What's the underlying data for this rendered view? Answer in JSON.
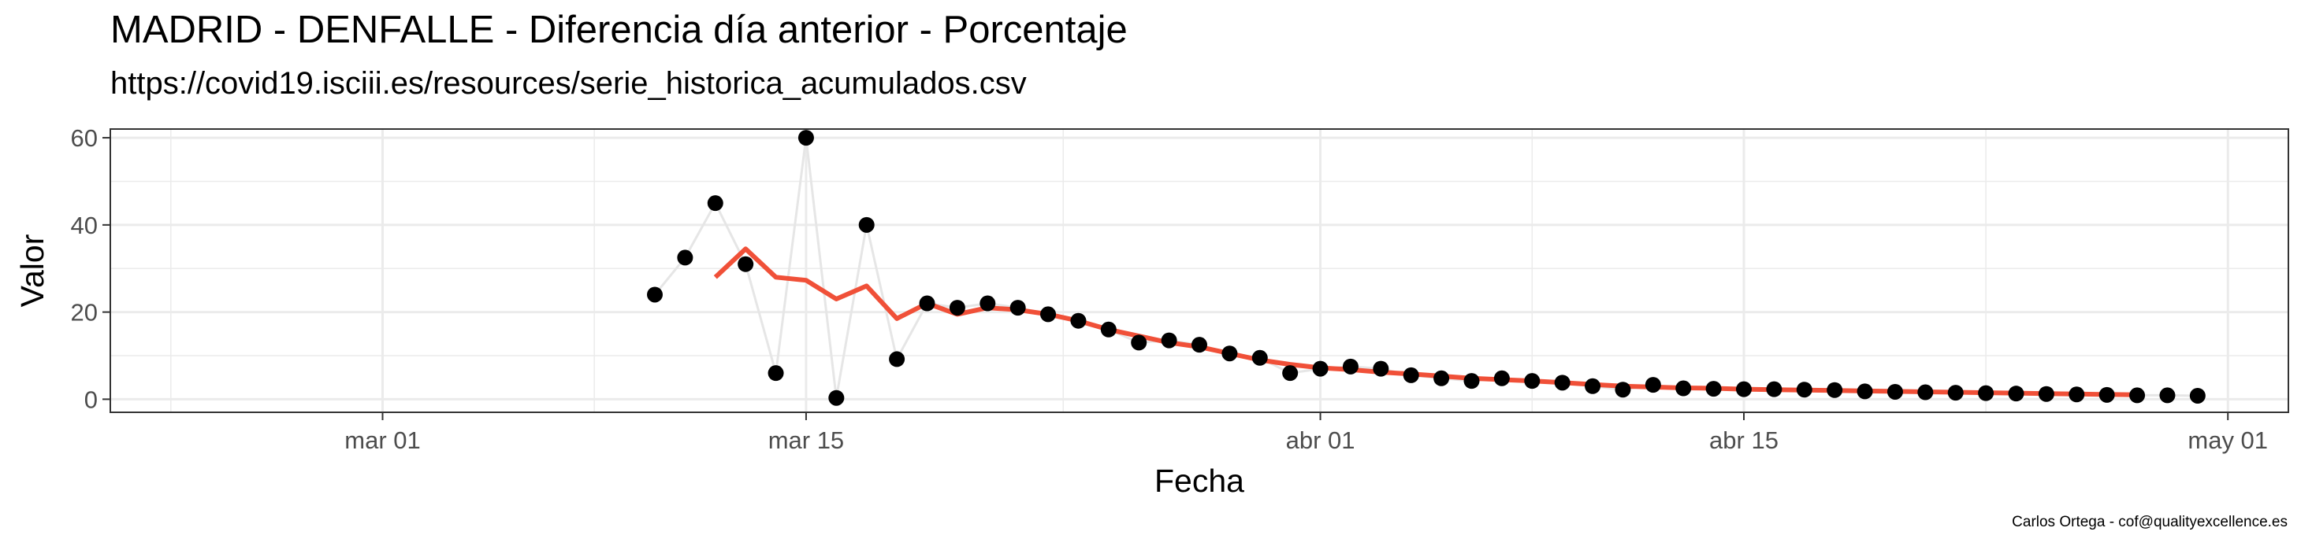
{
  "chart_data": {
    "type": "line",
    "title": "MADRID - DENFALLE - Diferencia día anterior - Porcentaje",
    "subtitle": "https://covid19.isciii.es/resources/serie_historica_acumulados.csv",
    "caption": "Carlos Ortega - cof@qualityexcellence.es",
    "xlabel": "Fecha",
    "ylabel": "Valor",
    "xlim": [
      "2020-02-21",
      "2020-05-03"
    ],
    "ylim": [
      -3,
      62
    ],
    "x_ticks": [
      {
        "date": "2020-03-01",
        "label": "mar 01"
      },
      {
        "date": "2020-03-15",
        "label": "mar 15"
      },
      {
        "date": "2020-04-01",
        "label": "abr 01"
      },
      {
        "date": "2020-04-15",
        "label": "abr 15"
      },
      {
        "date": "2020-05-01",
        "label": "may 01"
      }
    ],
    "y_ticks": [
      0,
      20,
      40,
      60
    ],
    "grid": true,
    "colors": {
      "points": "#000000",
      "raw_line": "#e6e6e6",
      "smooth_line": "#f05038",
      "grid": "#ebebeb",
      "panel_border": "#333333"
    },
    "series": [
      {
        "kind": "points-with-thin-line",
        "x": [
          "2020-03-10",
          "2020-03-11",
          "2020-03-12",
          "2020-03-13",
          "2020-03-14",
          "2020-03-15",
          "2020-03-16",
          "2020-03-17",
          "2020-03-18",
          "2020-03-19",
          "2020-03-20",
          "2020-03-21",
          "2020-03-22",
          "2020-03-23",
          "2020-03-24",
          "2020-03-25",
          "2020-03-26",
          "2020-03-27",
          "2020-03-28",
          "2020-03-29",
          "2020-03-30",
          "2020-03-31",
          "2020-04-01",
          "2020-04-02",
          "2020-04-03",
          "2020-04-04",
          "2020-04-05",
          "2020-04-06",
          "2020-04-07",
          "2020-04-08",
          "2020-04-09",
          "2020-04-10",
          "2020-04-11",
          "2020-04-12",
          "2020-04-13",
          "2020-04-14",
          "2020-04-15",
          "2020-04-16",
          "2020-04-17",
          "2020-04-18",
          "2020-04-19",
          "2020-04-20",
          "2020-04-21",
          "2020-04-22",
          "2020-04-23",
          "2020-04-24",
          "2020-04-25",
          "2020-04-26",
          "2020-04-27",
          "2020-04-28",
          "2020-04-29",
          "2020-04-30"
        ],
        "y": [
          24,
          32.5,
          45,
          31,
          6,
          60,
          0.3,
          40,
          9.2,
          22,
          21,
          22,
          21,
          19.5,
          18,
          16,
          13,
          13.5,
          12.5,
          10.5,
          9.5,
          6,
          7,
          7.5,
          7,
          5.5,
          4.8,
          4.2,
          4.8,
          4.2,
          3.8,
          3,
          2.2,
          3.3,
          2.5,
          2.4,
          2.3,
          2.3,
          2.2,
          2.1,
          1.8,
          1.7,
          1.6,
          1.5,
          1.4,
          1.3,
          1.2,
          1.1,
          1,
          0.9,
          0.9,
          0.8
        ]
      },
      {
        "kind": "moving-average",
        "x": [
          "2020-03-12",
          "2020-03-13",
          "2020-03-14",
          "2020-03-15",
          "2020-03-16",
          "2020-03-17",
          "2020-03-18",
          "2020-03-19",
          "2020-03-20",
          "2020-03-21",
          "2020-03-22",
          "2020-03-23",
          "2020-03-24",
          "2020-03-25",
          "2020-03-26",
          "2020-03-27",
          "2020-03-28",
          "2020-03-29",
          "2020-03-30",
          "2020-03-31",
          "2020-04-01",
          "2020-04-02",
          "2020-04-03",
          "2020-04-04",
          "2020-04-05",
          "2020-04-06",
          "2020-04-07",
          "2020-04-08",
          "2020-04-09",
          "2020-04-10",
          "2020-04-11",
          "2020-04-12",
          "2020-04-13",
          "2020-04-14",
          "2020-04-15",
          "2020-04-16",
          "2020-04-17",
          "2020-04-18",
          "2020-04-19",
          "2020-04-20",
          "2020-04-21",
          "2020-04-22",
          "2020-04-23",
          "2020-04-24",
          "2020-04-25",
          "2020-04-26",
          "2020-04-27",
          "2020-04-28"
        ],
        "y": [
          28,
          34.5,
          28,
          27.3,
          23,
          26,
          18.5,
          22,
          19.5,
          21,
          20.5,
          19.5,
          18,
          16,
          14.5,
          13,
          12,
          10.5,
          9,
          8,
          7.2,
          6.8,
          6.2,
          5.8,
          5.3,
          4.8,
          4.5,
          4.2,
          3.8,
          3.4,
          3,
          2.8,
          2.6,
          2.5,
          2.3,
          2.2,
          2.1,
          2,
          1.9,
          1.8,
          1.7,
          1.6,
          1.5,
          1.4,
          1.3,
          1.2,
          1.1,
          1
        ]
      }
    ]
  }
}
